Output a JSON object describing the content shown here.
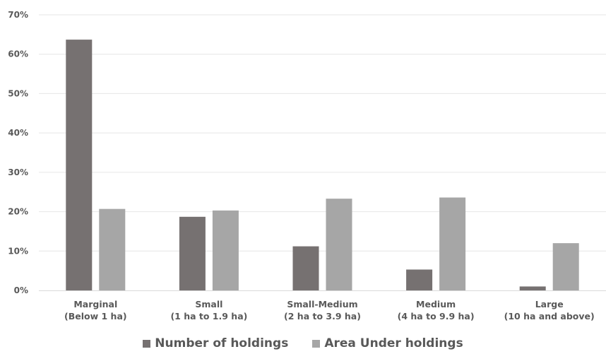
{
  "chart_data": {
    "type": "bar",
    "categories": [
      [
        "Marginal",
        "(Below 1 ha)"
      ],
      [
        "Small",
        "(1 ha to 1.9 ha)"
      ],
      [
        "Small-Medium",
        "(2 ha to 3.9 ha)"
      ],
      [
        "Medium",
        "(4 ha to 9.9 ha)"
      ],
      [
        "Large",
        "(10 ha and above)"
      ]
    ],
    "series": [
      {
        "name": "Number of holdings",
        "color": "#767171",
        "values": [
          63.7,
          18.7,
          11.2,
          5.3,
          1.0
        ]
      },
      {
        "name": "Area Under holdings",
        "color": "#a6a6a6",
        "values": [
          20.7,
          20.3,
          23.3,
          23.6,
          12.0
        ]
      }
    ],
    "yticks": [
      "0%",
      "10%",
      "20%",
      "30%",
      "40%",
      "50%",
      "60%",
      "70%"
    ],
    "ylim": [
      0,
      70
    ],
    "grid": true,
    "legend_position": "bottom"
  }
}
